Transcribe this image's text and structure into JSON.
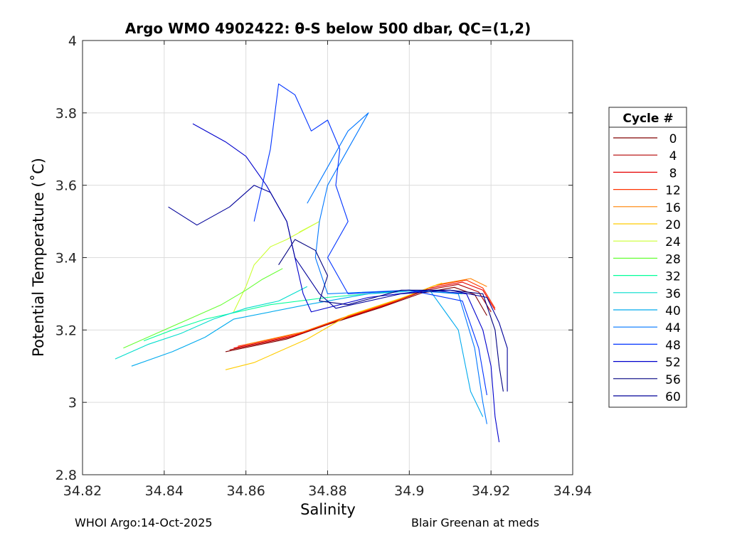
{
  "chart_data": {
    "type": "line",
    "title": "Argo WMO 4902422: θ-S below 500 dbar,  QC=(1,2)",
    "xlabel": "Salinity",
    "ylabel": "Potential Temperature (˚C)",
    "xlim": [
      34.82,
      34.94
    ],
    "ylim": [
      2.8,
      4.0
    ],
    "xticks": [
      34.82,
      34.84,
      34.86,
      34.88,
      34.9,
      34.92,
      34.94
    ],
    "xtick_labels": [
      "34.82",
      "34.84",
      "34.86",
      "34.88",
      "34.9",
      "34.92",
      "34.94"
    ],
    "yticks": [
      2.8,
      3.0,
      3.2,
      3.4,
      3.6,
      3.8,
      4.0
    ],
    "ytick_labels": [
      "2.8",
      "3",
      "3.2",
      "3.4",
      "3.6",
      "3.8",
      "4"
    ],
    "grid": true,
    "legend_title": "Cycle #",
    "legend_position": "right",
    "series": [
      {
        "name": "0",
        "color": "#800000",
        "points": [
          [
            34.855,
            3.14
          ],
          [
            34.87,
            3.175
          ],
          [
            34.88,
            3.215
          ],
          [
            34.893,
            3.262
          ],
          [
            34.903,
            3.302
          ],
          [
            34.911,
            3.318
          ],
          [
            34.916,
            3.298
          ],
          [
            34.919,
            3.24
          ]
        ]
      },
      {
        "name": "4",
        "color": "#b30000",
        "points": [
          [
            34.856,
            3.145
          ],
          [
            34.871,
            3.18
          ],
          [
            34.881,
            3.22
          ],
          [
            34.894,
            3.268
          ],
          [
            34.904,
            3.31
          ],
          [
            34.912,
            3.326
          ],
          [
            34.917,
            3.305
          ],
          [
            34.92,
            3.25
          ]
        ]
      },
      {
        "name": "8",
        "color": "#e60000",
        "points": [
          [
            34.857,
            3.15
          ],
          [
            34.872,
            3.185
          ],
          [
            34.882,
            3.225
          ],
          [
            34.895,
            3.272
          ],
          [
            34.905,
            3.316
          ],
          [
            34.913,
            3.332
          ],
          [
            34.918,
            3.31
          ],
          [
            34.921,
            3.255
          ]
        ]
      },
      {
        "name": "12",
        "color": "#ff3300",
        "points": [
          [
            34.858,
            3.155
          ],
          [
            34.873,
            3.19
          ],
          [
            34.883,
            3.23
          ],
          [
            34.896,
            3.278
          ],
          [
            34.906,
            3.322
          ],
          [
            34.914,
            3.338
          ],
          [
            34.918,
            3.316
          ],
          [
            34.921,
            3.26
          ]
        ]
      },
      {
        "name": "16",
        "color": "#ff8000",
        "points": [
          [
            34.86,
            3.16
          ],
          [
            34.874,
            3.195
          ],
          [
            34.884,
            3.235
          ],
          [
            34.897,
            3.283
          ],
          [
            34.907,
            3.326
          ],
          [
            34.915,
            3.342
          ],
          [
            34.919,
            3.32
          ]
        ]
      },
      {
        "name": "20",
        "color": "#ffcc00",
        "points": [
          [
            34.855,
            3.09
          ],
          [
            34.862,
            3.11
          ],
          [
            34.868,
            3.14
          ],
          [
            34.875,
            3.175
          ],
          [
            34.885,
            3.24
          ],
          [
            34.898,
            3.288
          ],
          [
            34.908,
            3.33
          ]
        ]
      },
      {
        "name": "24",
        "color": "#ccff33",
        "points": [
          [
            34.857,
            3.25
          ],
          [
            34.86,
            3.32
          ],
          [
            34.862,
            3.38
          ],
          [
            34.866,
            3.43
          ],
          [
            34.87,
            3.45
          ],
          [
            34.878,
            3.5
          ],
          [
            34.873,
            3.47
          ]
        ]
      },
      {
        "name": "28",
        "color": "#66ff33",
        "points": [
          [
            34.83,
            3.15
          ],
          [
            34.838,
            3.19
          ],
          [
            34.846,
            3.23
          ],
          [
            34.854,
            3.27
          ],
          [
            34.86,
            3.31
          ],
          [
            34.864,
            3.34
          ],
          [
            34.869,
            3.37
          ]
        ]
      },
      {
        "name": "32",
        "color": "#00ff99",
        "points": [
          [
            34.835,
            3.17
          ],
          [
            34.842,
            3.2
          ],
          [
            34.85,
            3.23
          ],
          [
            34.858,
            3.25
          ],
          [
            34.866,
            3.27
          ],
          [
            34.88,
            3.29
          ],
          [
            34.9,
            3.31
          ],
          [
            34.913,
            3.3
          ]
        ]
      },
      {
        "name": "36",
        "color": "#00ddcc",
        "points": [
          [
            34.828,
            3.12
          ],
          [
            34.836,
            3.16
          ],
          [
            34.844,
            3.19
          ],
          [
            34.852,
            3.23
          ],
          [
            34.86,
            3.26
          ],
          [
            34.868,
            3.28
          ],
          [
            34.875,
            3.32
          ]
        ]
      },
      {
        "name": "40",
        "color": "#00aaee",
        "points": [
          [
            34.832,
            3.1
          ],
          [
            34.842,
            3.14
          ],
          [
            34.85,
            3.18
          ],
          [
            34.857,
            3.23
          ],
          [
            34.875,
            3.27
          ],
          [
            34.89,
            3.3
          ],
          [
            34.905,
            3.31
          ],
          [
            34.912,
            3.2
          ],
          [
            34.915,
            3.03
          ],
          [
            34.918,
            2.96
          ]
        ]
      },
      {
        "name": "44",
        "color": "#0077ff",
        "points": [
          [
            34.875,
            3.55
          ],
          [
            34.88,
            3.65
          ],
          [
            34.885,
            3.75
          ],
          [
            34.89,
            3.8
          ],
          [
            34.885,
            3.7
          ],
          [
            34.88,
            3.6
          ],
          [
            34.878,
            3.5
          ],
          [
            34.877,
            3.4
          ],
          [
            34.88,
            3.3
          ],
          [
            34.9,
            3.31
          ],
          [
            34.912,
            3.3
          ],
          [
            34.916,
            3.15
          ],
          [
            34.918,
            3.0
          ],
          [
            34.919,
            2.94
          ]
        ]
      },
      {
        "name": "48",
        "color": "#0033ff",
        "points": [
          [
            34.862,
            3.5
          ],
          [
            34.866,
            3.7
          ],
          [
            34.868,
            3.88
          ],
          [
            34.872,
            3.85
          ],
          [
            34.876,
            3.75
          ],
          [
            34.88,
            3.78
          ],
          [
            34.883,
            3.7
          ],
          [
            34.882,
            3.6
          ],
          [
            34.885,
            3.5
          ],
          [
            34.88,
            3.4
          ],
          [
            34.885,
            3.3
          ],
          [
            34.9,
            3.31
          ],
          [
            34.913,
            3.28
          ],
          [
            34.917,
            3.15
          ],
          [
            34.919,
            3.02
          ]
        ]
      },
      {
        "name": "52",
        "color": "#0000cc",
        "points": [
          [
            34.847,
            3.77
          ],
          [
            34.855,
            3.72
          ],
          [
            34.86,
            3.68
          ],
          [
            34.865,
            3.6
          ],
          [
            34.87,
            3.5
          ],
          [
            34.872,
            3.4
          ],
          [
            34.874,
            3.3
          ],
          [
            34.876,
            3.25
          ],
          [
            34.89,
            3.29
          ],
          [
            34.905,
            3.31
          ],
          [
            34.914,
            3.3
          ],
          [
            34.918,
            3.2
          ],
          [
            34.92,
            3.1
          ],
          [
            34.921,
            2.96
          ],
          [
            34.922,
            2.89
          ]
        ]
      },
      {
        "name": "56",
        "color": "#000080",
        "points": [
          [
            34.868,
            3.38
          ],
          [
            34.872,
            3.45
          ],
          [
            34.877,
            3.42
          ],
          [
            34.88,
            3.35
          ],
          [
            34.878,
            3.28
          ],
          [
            34.885,
            3.27
          ],
          [
            34.898,
            3.31
          ],
          [
            34.91,
            3.31
          ],
          [
            34.918,
            3.3
          ],
          [
            34.921,
            3.2
          ],
          [
            34.922,
            3.1
          ],
          [
            34.923,
            3.03
          ]
        ]
      },
      {
        "name": "60",
        "color": "#000099",
        "points": [
          [
            34.841,
            3.54
          ],
          [
            34.848,
            3.49
          ],
          [
            34.856,
            3.54
          ],
          [
            34.862,
            3.6
          ],
          [
            34.866,
            3.58
          ],
          [
            34.87,
            3.5
          ],
          [
            34.872,
            3.4
          ],
          [
            34.878,
            3.3
          ],
          [
            34.882,
            3.26
          ],
          [
            34.898,
            3.3
          ],
          [
            34.91,
            3.31
          ],
          [
            34.919,
            3.29
          ],
          [
            34.922,
            3.22
          ],
          [
            34.924,
            3.15
          ],
          [
            34.924,
            3.03
          ]
        ]
      }
    ]
  },
  "footer": {
    "left": "WHOI Argo:14-Oct-2025",
    "right": "Blair Greenan at meds"
  }
}
